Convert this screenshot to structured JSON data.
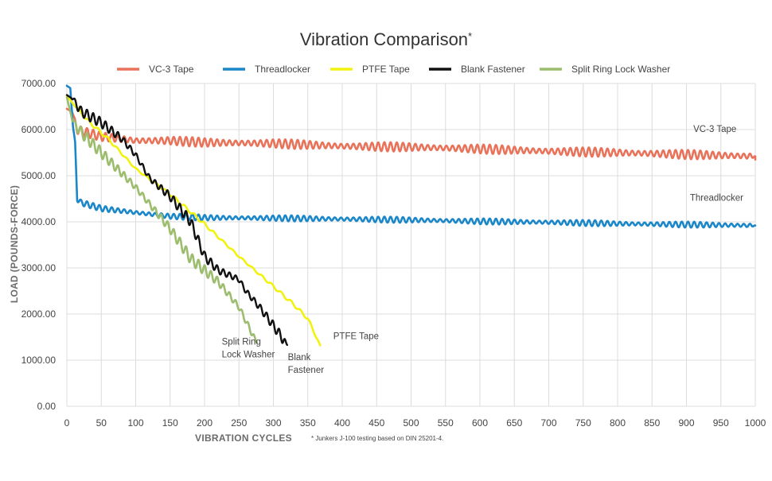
{
  "chart_data": {
    "type": "line",
    "title": "Vibration Comparison",
    "title_mark": "*",
    "xlabel": "VIBRATION CYCLES",
    "ylabel": "LOAD (POUNDS-FORCE)",
    "footnote": "* Junkers J-100 testing based on DIN 25201-4.",
    "xlim": [
      0,
      1000
    ],
    "ylim": [
      0,
      7000
    ],
    "xticks": [
      "0",
      "50",
      "100",
      "150",
      "200",
      "250",
      "300",
      "350",
      "400",
      "450",
      "500",
      "550",
      "600",
      "650",
      "700",
      "750",
      "800",
      "850",
      "900",
      "950",
      "1000"
    ],
    "yticks": [
      "0.00",
      "1000.00",
      "2000.00",
      "3000.00",
      "4000.00",
      "5000.00",
      "6000.00",
      "7000.00"
    ],
    "grid": true,
    "legend_position": "top",
    "series": [
      {
        "name": "VC-3 Tape",
        "color": "#e8735a",
        "x_range": [
          0,
          1000
        ],
        "anchors": [
          [
            0,
            6450
          ],
          [
            8,
            6380
          ],
          [
            15,
            6000
          ],
          [
            25,
            5950
          ],
          [
            50,
            5850
          ],
          [
            100,
            5760
          ],
          [
            150,
            5760
          ],
          [
            200,
            5720
          ],
          [
            300,
            5700
          ],
          [
            400,
            5640
          ],
          [
            500,
            5620
          ],
          [
            600,
            5580
          ],
          [
            700,
            5530
          ],
          [
            800,
            5500
          ],
          [
            900,
            5460
          ],
          [
            1000,
            5420
          ],
          [
            1000,
            5350
          ]
        ],
        "wobble": 100,
        "wobble_period": 9
      },
      {
        "name": "Threadlocker",
        "color": "#1b87c9",
        "x_range": [
          0,
          1000
        ],
        "anchors": [
          [
            0,
            6950
          ],
          [
            5,
            6900
          ],
          [
            9,
            6050
          ],
          [
            12,
            5700
          ],
          [
            15,
            4500
          ],
          [
            20,
            4420
          ],
          [
            50,
            4290
          ],
          [
            100,
            4200
          ],
          [
            150,
            4120
          ],
          [
            200,
            4090
          ],
          [
            300,
            4080
          ],
          [
            400,
            4060
          ],
          [
            500,
            4040
          ],
          [
            600,
            4010
          ],
          [
            700,
            3990
          ],
          [
            800,
            3960
          ],
          [
            900,
            3940
          ],
          [
            1000,
            3920
          ]
        ],
        "wobble": 65,
        "wobble_period": 9
      },
      {
        "name": "PTFE Tape",
        "color": "#f2f20f",
        "x_range": [
          0,
          368
        ],
        "anchors": [
          [
            0,
            6720
          ],
          [
            10,
            6550
          ],
          [
            30,
            6200
          ],
          [
            60,
            5800
          ],
          [
            100,
            5150
          ],
          [
            150,
            4600
          ],
          [
            200,
            3950
          ],
          [
            250,
            3250
          ],
          [
            300,
            2600
          ],
          [
            330,
            2200
          ],
          [
            350,
            1900
          ],
          [
            360,
            1580
          ],
          [
            368,
            1320
          ]
        ],
        "wobble": 35,
        "wobble_period": 14
      },
      {
        "name": "Blank Fastener",
        "color": "#111111",
        "x_range": [
          0,
          320
        ],
        "anchors": [
          [
            0,
            6750
          ],
          [
            10,
            6650
          ],
          [
            20,
            6400
          ],
          [
            50,
            6150
          ],
          [
            80,
            5800
          ],
          [
            100,
            5450
          ],
          [
            120,
            4950
          ],
          [
            150,
            4550
          ],
          [
            180,
            4000
          ],
          [
            200,
            3250
          ],
          [
            220,
            2950
          ],
          [
            250,
            2750
          ],
          [
            260,
            2500
          ],
          [
            280,
            2150
          ],
          [
            300,
            1750
          ],
          [
            320,
            1330
          ]
        ],
        "wobble": 110,
        "wobble_period": 9
      },
      {
        "name": "Split Ring Lock Washer",
        "color": "#9cbd6e",
        "x_range": [
          0,
          276
        ],
        "anchors": [
          [
            0,
            6700
          ],
          [
            8,
            6200
          ],
          [
            20,
            5950
          ],
          [
            50,
            5500
          ],
          [
            100,
            4750
          ],
          [
            150,
            3850
          ],
          [
            180,
            3200
          ],
          [
            200,
            2950
          ],
          [
            220,
            2700
          ],
          [
            250,
            2150
          ],
          [
            265,
            1700
          ],
          [
            276,
            1380
          ]
        ],
        "wobble": 120,
        "wobble_period": 9
      }
    ],
    "annotations": [
      {
        "text": "VC-3 Tape",
        "series": "VC-3 Tape",
        "at": [
          910,
          5950
        ]
      },
      {
        "text": "Threadlocker",
        "series": "Threadlocker",
        "at": [
          905,
          4460
        ]
      },
      {
        "text": "PTFE Tape",
        "series": "PTFE Tape",
        "at": [
          387,
          1460
        ]
      },
      {
        "lines": [
          "Blank",
          "Fastener"
        ],
        "series": "Blank Fastener",
        "at": [
          321,
          1000
        ]
      },
      {
        "lines": [
          "Split Ring",
          "Lock Washer"
        ],
        "series": "Split Ring Lock Washer",
        "at": [
          225,
          1340
        ]
      }
    ]
  }
}
